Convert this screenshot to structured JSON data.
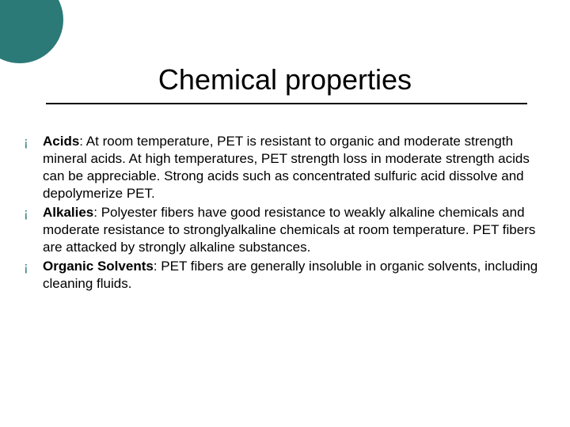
{
  "accent_color": "#2b7a78",
  "background_color": "#ffffff",
  "title": "Chemical properties",
  "title_fontsize": 36,
  "body_fontsize": 17,
  "line_height": 22,
  "bullets": [
    {
      "marker": "¡",
      "label": "Acids",
      "text": ": At room temperature, PET is resistant to organic and moderate strength mineral acids. At high temperatures, PET strength loss in moderate strength acids can be appreciable. Strong acids such as concentrated sulfuric acid dissolve and depolymerize PET."
    },
    {
      "marker": "¡",
      "label": "Alkalies",
      "text": ": Polyester fibers have good resistance to weakly alkaline chemicals and moderate resistance to stronglyalkaline chemicals at room temperature. PET fibers are attacked by strongly alkaline substances."
    },
    {
      "marker": "¡",
      "label": "Organic Solvents",
      "text": ": PET fibers are generally insoluble in organic solvents, including cleaning fluids."
    }
  ]
}
